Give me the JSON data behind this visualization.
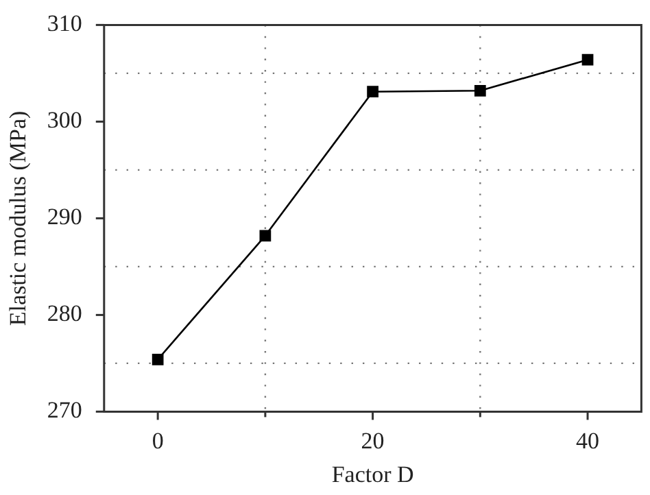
{
  "chart_data": {
    "type": "line",
    "xlabel": "Factor D",
    "ylabel": "Elastic modulus (MPa)",
    "x": [
      0,
      10,
      20,
      30,
      40
    ],
    "series": [
      {
        "color": "#000000",
        "values": [
          275.4,
          288.2,
          303.1,
          303.2,
          306.4
        ]
      }
    ],
    "xlim": [
      -5,
      45
    ],
    "xticks": [
      0,
      {
        "value": 10,
        "label": null
      },
      20,
      {
        "value": 30,
        "label": null
      },
      40
    ],
    "ylim": [
      270,
      310
    ],
    "yticks": [
      270,
      {
        "value": 275,
        "label": null
      },
      280,
      {
        "value": 285,
        "label": null
      },
      290,
      {
        "value": 295,
        "label": null
      },
      300,
      {
        "value": 305,
        "label": null
      },
      310
    ],
    "grid": true,
    "legend": false,
    "marker": "square",
    "line_style": "solid"
  }
}
